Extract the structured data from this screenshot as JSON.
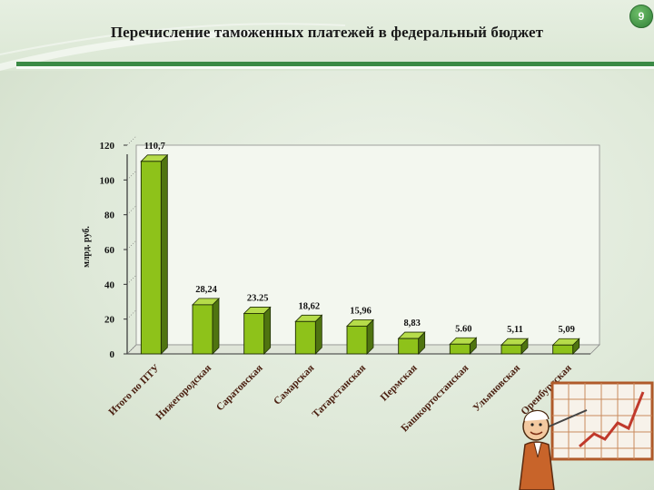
{
  "slide": {
    "title": "Перечисление таможенных платежей в федеральный бюджет",
    "page_number": "9"
  },
  "colors": {
    "bar_front": "#8ec21a",
    "bar_top": "#b6dc4a",
    "bar_side": "#4f7410",
    "accent_green": "#3b8a45"
  },
  "chart_data": {
    "type": "bar",
    "title": "",
    "ylabel": "млрд. руб.",
    "xlabel": "",
    "ylim": [
      0,
      120
    ],
    "yticks": [
      "0",
      "20",
      "40",
      "60",
      "80",
      "100",
      "120"
    ],
    "categories": [
      "Итого по ПТУ",
      "Нижегородская",
      "Саратовская",
      "Самарская",
      "Татарстанская",
      "Пермская",
      "Башкортостанская",
      "Ульяновская",
      "Оренбургская"
    ],
    "values": [
      110.7,
      28.24,
      23.25,
      18.62,
      15.96,
      8.83,
      5.6,
      5.11,
      5.09
    ],
    "data_labels": [
      "110,7",
      "28,24",
      "23.25",
      "18,62",
      "15,96",
      "8,83",
      "5.60",
      "5,11",
      "5,09"
    ],
    "grid": false,
    "legend": "none"
  },
  "decoration": {
    "cartoon_icon": "presenter-with-growth-chart-icon"
  }
}
